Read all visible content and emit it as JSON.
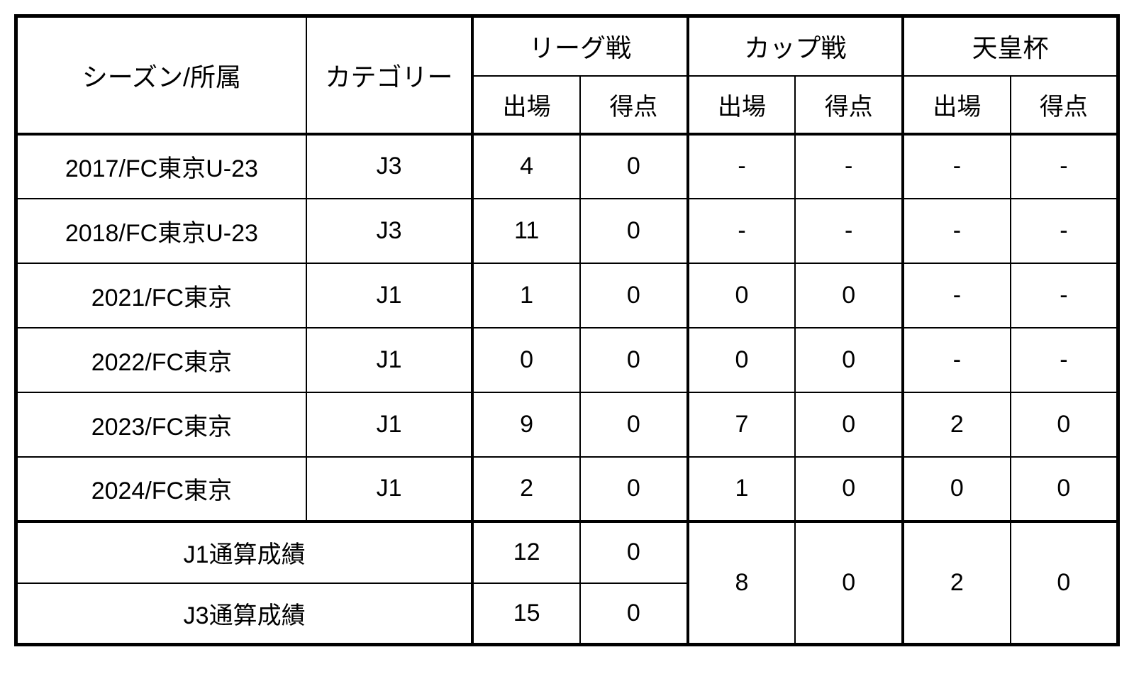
{
  "table": {
    "headers": {
      "season_team": "シーズン/所属",
      "category": "カテゴリー",
      "league": "リーグ戦",
      "cup": "カップ戦",
      "emperor": "天皇杯",
      "appearances": "出場",
      "goals": "得点"
    },
    "columns_widths": {
      "season": 410,
      "category": 235,
      "stat": 152
    },
    "rows": [
      {
        "season_team": "2017/FC東京U-23",
        "category": "J3",
        "league_app": "4",
        "league_goals": "0",
        "cup_app": "-",
        "cup_goals": "-",
        "emperor_app": "-",
        "emperor_goals": "-"
      },
      {
        "season_team": "2018/FC東京U-23",
        "category": "J3",
        "league_app": "11",
        "league_goals": "0",
        "cup_app": "-",
        "cup_goals": "-",
        "emperor_app": "-",
        "emperor_goals": "-"
      },
      {
        "season_team": "2021/FC東京",
        "category": "J1",
        "league_app": "1",
        "league_goals": "0",
        "cup_app": "0",
        "cup_goals": "0",
        "emperor_app": "-",
        "emperor_goals": "-"
      },
      {
        "season_team": "2022/FC東京",
        "category": "J1",
        "league_app": "0",
        "league_goals": "0",
        "cup_app": "0",
        "cup_goals": "0",
        "emperor_app": "-",
        "emperor_goals": "-"
      },
      {
        "season_team": "2023/FC東京",
        "category": "J1",
        "league_app": "9",
        "league_goals": "0",
        "cup_app": "7",
        "cup_goals": "0",
        "emperor_app": "2",
        "emperor_goals": "0"
      },
      {
        "season_team": "2024/FC東京",
        "category": "J1",
        "league_app": "2",
        "league_goals": "0",
        "cup_app": "1",
        "cup_goals": "0",
        "emperor_app": "0",
        "emperor_goals": "0"
      }
    ],
    "summary": {
      "j1_label": "J1通算成績",
      "j1_league_app": "12",
      "j1_league_goals": "0",
      "j3_label": "J3通算成績",
      "j3_league_app": "15",
      "j3_league_goals": "0",
      "combined_cup_app": "8",
      "combined_cup_goals": "0",
      "combined_emperor_app": "2",
      "combined_emperor_goals": "0"
    },
    "styling": {
      "border_color": "#000000",
      "outer_border_width": 5,
      "inner_border_width": 2,
      "group_border_width": 4,
      "background_color": "#ffffff",
      "text_color": "#000000",
      "header_fontsize": 36,
      "subheader_fontsize": 34,
      "cell_fontsize": 34
    }
  }
}
